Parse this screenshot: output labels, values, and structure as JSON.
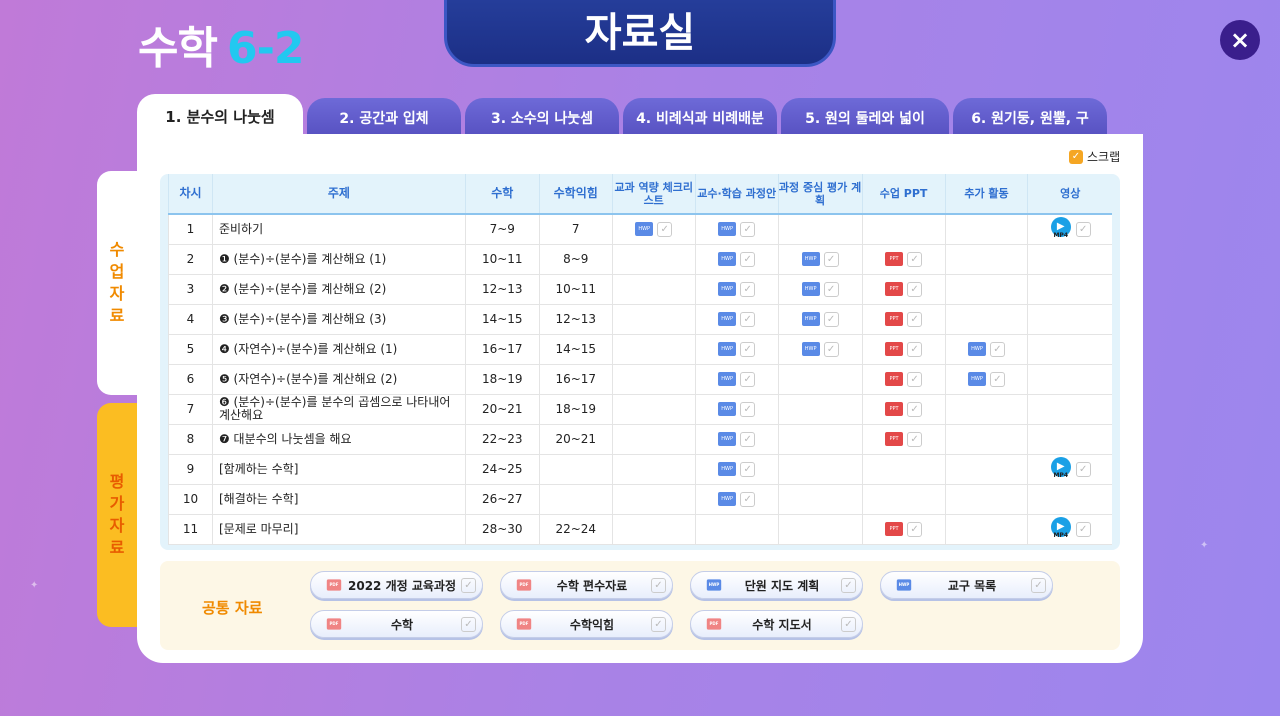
{
  "header": {
    "subject": "수학",
    "grade": "6-2",
    "title": "자료실",
    "close": "×"
  },
  "tabs": [
    "1. 분수의 나눗셈",
    "2. 공간과 입체",
    "3. 소수의 나눗셈",
    "4. 비례식과 비례배분",
    "5. 원의 둘레와 넓이",
    "6. 원기둥, 원뿔, 구"
  ],
  "side": {
    "lesson": "수업 자료",
    "eval": "평가 자료"
  },
  "scrap": "스크랩",
  "table": {
    "headers": [
      "차시",
      "주제",
      "수학",
      "수학익힘",
      "교과 역량 체크리스트",
      "교수·학습 과정안",
      "과정 중심 평가 계획",
      "수업 PPT",
      "추가 활동",
      "영상"
    ],
    "rows": [
      {
        "no": "1",
        "topic": "준비하기",
        "math": "7~9",
        "work": "7",
        "files": [
          "HWP",
          "HWP",
          null,
          null,
          null,
          "MP4"
        ]
      },
      {
        "no": "2",
        "topic": "❶ (분수)÷(분수)를 계산해요 (1)",
        "math": "10~11",
        "work": "8~9",
        "files": [
          null,
          "HWP",
          "HWP",
          "PPT",
          null,
          null
        ]
      },
      {
        "no": "3",
        "topic": "❷ (분수)÷(분수)를 계산해요 (2)",
        "math": "12~13",
        "work": "10~11",
        "files": [
          null,
          "HWP",
          "HWP",
          "PPT",
          null,
          null
        ]
      },
      {
        "no": "4",
        "topic": "❸ (분수)÷(분수)를 계산해요 (3)",
        "math": "14~15",
        "work": "12~13",
        "files": [
          null,
          "HWP",
          "HWP",
          "PPT",
          null,
          null
        ]
      },
      {
        "no": "5",
        "topic": "❹ (자연수)÷(분수)를 계산해요 (1)",
        "math": "16~17",
        "work": "14~15",
        "files": [
          null,
          "HWP",
          "HWP",
          "PPT",
          "HWP",
          null
        ]
      },
      {
        "no": "6",
        "topic": "❺ (자연수)÷(분수)를 계산해요 (2)",
        "math": "18~19",
        "work": "16~17",
        "files": [
          null,
          "HWP",
          null,
          "PPT",
          "HWP",
          null
        ]
      },
      {
        "no": "7",
        "topic": "❻ (분수)÷(분수)를 분수의 곱셈으로 나타내어 계산해요",
        "math": "20~21",
        "work": "18~19",
        "files": [
          null,
          "HWP",
          null,
          "PPT",
          null,
          null
        ]
      },
      {
        "no": "8",
        "topic": "❼ 대분수의 나눗셈을 해요",
        "math": "22~23",
        "work": "20~21",
        "files": [
          null,
          "HWP",
          null,
          "PPT",
          null,
          null
        ]
      },
      {
        "no": "9",
        "topic": "[함께하는 수학]",
        "math": "24~25",
        "work": "",
        "files": [
          null,
          "HWP",
          null,
          null,
          null,
          "MP4"
        ]
      },
      {
        "no": "10",
        "topic": "[해결하는 수학]",
        "math": "26~27",
        "work": "",
        "files": [
          null,
          "HWP",
          null,
          null,
          null,
          null
        ]
      },
      {
        "no": "11",
        "topic": "[문제로 마무리]",
        "math": "28~30",
        "work": "22~24",
        "files": [
          null,
          null,
          null,
          "PPT",
          null,
          "MP4"
        ]
      }
    ]
  },
  "common": {
    "label": "공통 자료",
    "items": [
      {
        "label": "2022 개정 교육과정",
        "type": "PDF"
      },
      {
        "label": "수학 편수자료",
        "type": "PDF"
      },
      {
        "label": "단원 지도 계획",
        "type": "HWP"
      },
      {
        "label": "교구 목록",
        "type": "HWP"
      },
      {
        "label": "수학",
        "type": "PDF"
      },
      {
        "label": "수학익힘",
        "type": "PDF"
      },
      {
        "label": "수학 지도서",
        "type": "PDF"
      }
    ]
  },
  "colors": {
    "accent": "#f08a00",
    "header_text": "#2f6fd0",
    "title_bg": "#1c2f86",
    "tab_bg": "#5650c0"
  }
}
